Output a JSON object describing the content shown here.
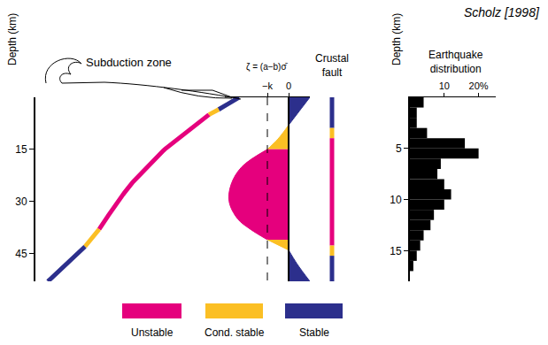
{
  "source": "Scholz [1998]",
  "key": [
    {
      "label": "Unstable",
      "color": "#e5007d"
    },
    {
      "label": "Cond. stable",
      "color": "#fbbf24"
    },
    {
      "label": "Stable",
      "color": "#2c2f8c"
    }
  ],
  "subduction": {
    "label": "Subduction zone",
    "axis_title": "Depth (km)",
    "ylim": [
      0,
      53
    ],
    "yticks": [
      15,
      30,
      45
    ],
    "zones": [
      {
        "from": 0,
        "to": 3.5,
        "stability": "Stable"
      },
      {
        "from": 3.5,
        "to": 5,
        "stability": "Cond. stable"
      },
      {
        "from": 5,
        "to": 38,
        "stability": "Unstable"
      },
      {
        "from": 38,
        "to": 43,
        "stability": "Cond. stable"
      },
      {
        "from": 43,
        "to": 53,
        "stability": "Stable"
      }
    ]
  },
  "friction": {
    "title": "ζ = (a−b)σ̄",
    "xlim": [
      -3,
      1
    ],
    "xticks": [
      {
        "value": -1,
        "label": "−k"
      },
      0
    ],
    "depth": [
      0,
      4,
      8,
      12,
      15,
      20,
      25,
      30,
      35,
      38,
      41,
      44,
      48,
      53
    ],
    "value": [
      1.0,
      0.5,
      0,
      -0.5,
      -1,
      -2.2,
      -2.7,
      -2.8,
      -2.4,
      -1.8,
      -1,
      0,
      0.4,
      1.0
    ],
    "zones": [
      {
        "from": 0,
        "to": 8,
        "stability": "Stable"
      },
      {
        "from": 8,
        "to": 15,
        "stability": "Cond. stable"
      },
      {
        "from": 15,
        "to": 41,
        "stability": "Unstable"
      },
      {
        "from": 41,
        "to": 44,
        "stability": "Cond. stable"
      },
      {
        "from": 44,
        "to": 53,
        "stability": "Stable"
      }
    ]
  },
  "crustal_fault": {
    "title": "Crustal fault",
    "zones": [
      {
        "from": 0,
        "to": 3,
        "stability": "Stable"
      },
      {
        "from": 3,
        "to": 4,
        "stability": "Cond. stable"
      },
      {
        "from": 4,
        "to": 14.5,
        "stability": "Unstable"
      },
      {
        "from": 14.5,
        "to": 15.5,
        "stability": "Cond. stable"
      },
      {
        "from": 15.5,
        "to": 18,
        "stability": "Stable"
      }
    ]
  },
  "chart_data": {
    "type": "bar",
    "title": "Earthquake distribution",
    "ylabel": "Depth (km)",
    "orientation": "horizontal",
    "bins": [
      0,
      1,
      2,
      3,
      4,
      5,
      6,
      7,
      8,
      9,
      10,
      11,
      12,
      13,
      14,
      15,
      16,
      17
    ],
    "values": [
      4,
      2,
      2,
      5,
      16,
      20,
      9,
      8,
      10,
      12,
      10,
      7,
      6,
      4,
      3,
      2,
      1
    ],
    "color": "#000000",
    "xlim": [
      0,
      25
    ],
    "xticks": [
      10,
      {
        "value": 20,
        "label": "20%"
      }
    ],
    "ylim": [
      0,
      18
    ],
    "yticks": [
      5,
      10,
      15
    ],
    "grid": false
  }
}
